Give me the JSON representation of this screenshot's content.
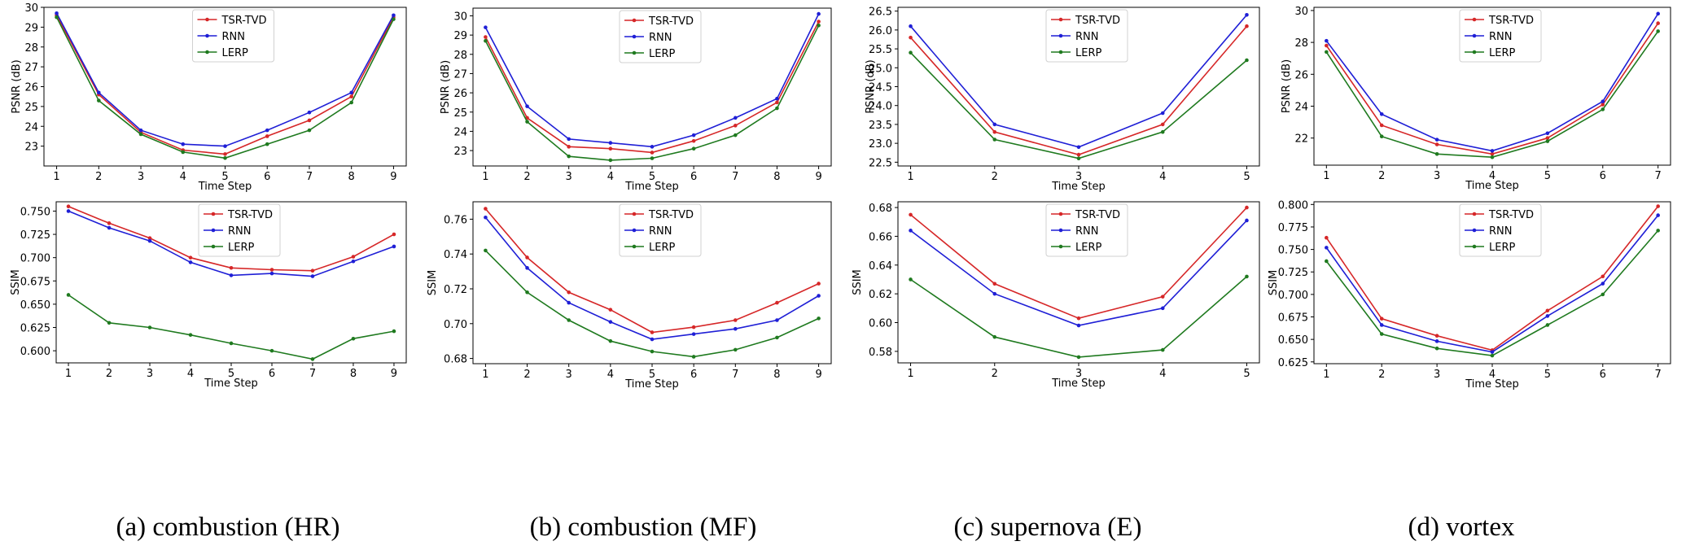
{
  "chart_data": [
    {
      "type": "line",
      "metric": "psnr",
      "panel": 0,
      "ylabel": "PSNR (dB)",
      "xlabel": "Time Step",
      "x": [
        1,
        2,
        3,
        4,
        5,
        6,
        7,
        8,
        9
      ],
      "ylim": [
        22.0,
        30.0
      ],
      "yticks": [
        23,
        24,
        25,
        26,
        27,
        28,
        29,
        30
      ],
      "ytick_labels": [
        "23",
        "24",
        "25",
        "26",
        "27",
        "28",
        "29",
        "30"
      ],
      "legend_position": "upper-center",
      "series": [
        {
          "name": "TSR-TVD",
          "color": "#d62728",
          "values": [
            29.6,
            25.6,
            23.7,
            22.8,
            22.6,
            23.5,
            24.3,
            25.5,
            29.5
          ]
        },
        {
          "name": "RNN",
          "color": "#1f1fd6",
          "values": [
            29.7,
            25.7,
            23.8,
            23.1,
            23.0,
            23.8,
            24.7,
            25.7,
            29.6
          ]
        },
        {
          "name": "LERP",
          "color": "#1f7a1f",
          "values": [
            29.5,
            25.3,
            23.6,
            22.7,
            22.4,
            23.1,
            23.8,
            25.2,
            29.4
          ]
        }
      ]
    },
    {
      "type": "line",
      "metric": "psnr",
      "panel": 1,
      "ylabel": "PSNR (dB)",
      "xlabel": "Time Step",
      "x": [
        1,
        2,
        3,
        4,
        5,
        6,
        7,
        8,
        9
      ],
      "ylim": [
        22.2,
        30.4
      ],
      "yticks": [
        23,
        24,
        25,
        26,
        27,
        28,
        29,
        30
      ],
      "ytick_labels": [
        "23",
        "24",
        "25",
        "26",
        "27",
        "28",
        "29",
        "30"
      ],
      "legend_position": "upper-center",
      "series": [
        {
          "name": "TSR-TVD",
          "color": "#d62728",
          "values": [
            28.9,
            24.7,
            23.2,
            23.1,
            22.9,
            23.5,
            24.3,
            25.5,
            29.7
          ]
        },
        {
          "name": "RNN",
          "color": "#1f1fd6",
          "values": [
            29.4,
            25.3,
            23.6,
            23.4,
            23.2,
            23.8,
            24.7,
            25.7,
            30.1
          ]
        },
        {
          "name": "LERP",
          "color": "#1f7a1f",
          "values": [
            28.7,
            24.5,
            22.7,
            22.5,
            22.6,
            23.1,
            23.8,
            25.2,
            29.5
          ]
        }
      ]
    },
    {
      "type": "line",
      "metric": "psnr",
      "panel": 2,
      "ylabel": "PSNR (dB)",
      "xlabel": "Time Step",
      "x": [
        1,
        2,
        3,
        4,
        5
      ],
      "ylim": [
        22.4,
        26.6
      ],
      "yticks": [
        22.5,
        23.0,
        23.5,
        24.0,
        24.5,
        25.0,
        25.5,
        26.0,
        26.5
      ],
      "ytick_labels": [
        "22.5",
        "23.0",
        "23.5",
        "24.0",
        "24.5",
        "25.0",
        "25.5",
        "26.0",
        "26.5"
      ],
      "legend_position": "upper-center",
      "series": [
        {
          "name": "TSR-TVD",
          "color": "#d62728",
          "values": [
            25.8,
            23.3,
            22.7,
            23.5,
            26.1
          ]
        },
        {
          "name": "RNN",
          "color": "#1f1fd6",
          "values": [
            26.1,
            23.5,
            22.9,
            23.8,
            26.4
          ]
        },
        {
          "name": "LERP",
          "color": "#1f7a1f",
          "values": [
            25.4,
            23.1,
            22.6,
            23.3,
            25.2
          ]
        }
      ]
    },
    {
      "type": "line",
      "metric": "psnr",
      "panel": 3,
      "ylabel": "PSNR (dB)",
      "xlabel": "Time Step",
      "x": [
        1,
        2,
        3,
        4,
        5,
        6,
        7
      ],
      "ylim": [
        20.3,
        30.2
      ],
      "yticks": [
        22,
        24,
        26,
        28,
        30
      ],
      "ytick_labels": [
        "22",
        "24",
        "26",
        "28",
        "30"
      ],
      "legend_position": "upper-center",
      "series": [
        {
          "name": "TSR-TVD",
          "color": "#d62728",
          "values": [
            27.8,
            22.8,
            21.6,
            21.0,
            22.0,
            24.1,
            29.2
          ]
        },
        {
          "name": "RNN",
          "color": "#1f1fd6",
          "values": [
            28.1,
            23.5,
            21.9,
            21.2,
            22.3,
            24.3,
            29.8
          ]
        },
        {
          "name": "LERP",
          "color": "#1f7a1f",
          "values": [
            27.4,
            22.1,
            21.0,
            20.8,
            21.8,
            23.8,
            28.7
          ]
        }
      ]
    },
    {
      "type": "line",
      "metric": "ssim",
      "panel": 0,
      "ylabel": "SSIM",
      "xlabel": "Time Step",
      "x": [
        1,
        2,
        3,
        4,
        5,
        6,
        7,
        8,
        9
      ],
      "ylim": [
        0.587,
        0.76
      ],
      "yticks": [
        0.6,
        0.625,
        0.65,
        0.675,
        0.7,
        0.725,
        0.75
      ],
      "ytick_labels": [
        "0.600",
        "0.625",
        "0.650",
        "0.675",
        "0.700",
        "0.725",
        "0.750"
      ],
      "legend_position": "upper-center",
      "series": [
        {
          "name": "TSR-TVD",
          "color": "#d62728",
          "values": [
            0.755,
            0.737,
            0.721,
            0.7,
            0.689,
            0.687,
            0.686,
            0.701,
            0.725
          ]
        },
        {
          "name": "RNN",
          "color": "#1f1fd6",
          "values": [
            0.75,
            0.732,
            0.718,
            0.695,
            0.681,
            0.683,
            0.68,
            0.696,
            0.712
          ]
        },
        {
          "name": "LERP",
          "color": "#1f7a1f",
          "values": [
            0.66,
            0.63,
            0.625,
            0.617,
            0.608,
            0.6,
            0.591,
            0.613,
            0.621
          ]
        }
      ]
    },
    {
      "type": "line",
      "metric": "ssim",
      "panel": 1,
      "ylabel": "SSIM",
      "xlabel": "Time Step",
      "x": [
        1,
        2,
        3,
        4,
        5,
        6,
        7,
        8,
        9
      ],
      "ylim": [
        0.677,
        0.77
      ],
      "yticks": [
        0.68,
        0.7,
        0.72,
        0.74,
        0.76
      ],
      "ytick_labels": [
        "0.68",
        "0.70",
        "0.72",
        "0.74",
        "0.76"
      ],
      "legend_position": "upper-center",
      "series": [
        {
          "name": "TSR-TVD",
          "color": "#d62728",
          "values": [
            0.766,
            0.738,
            0.718,
            0.708,
            0.695,
            0.698,
            0.702,
            0.712,
            0.723
          ]
        },
        {
          "name": "RNN",
          "color": "#1f1fd6",
          "values": [
            0.761,
            0.732,
            0.712,
            0.701,
            0.691,
            0.694,
            0.697,
            0.702,
            0.716
          ]
        },
        {
          "name": "LERP",
          "color": "#1f7a1f",
          "values": [
            0.742,
            0.718,
            0.702,
            0.69,
            0.684,
            0.681,
            0.685,
            0.692,
            0.703
          ]
        }
      ]
    },
    {
      "type": "line",
      "metric": "ssim",
      "panel": 2,
      "ylabel": "SSIM",
      "xlabel": "Time Step",
      "x": [
        1,
        2,
        3,
        4,
        5
      ],
      "ylim": [
        0.572,
        0.684
      ],
      "yticks": [
        0.58,
        0.6,
        0.62,
        0.64,
        0.66,
        0.68
      ],
      "ytick_labels": [
        "0.58",
        "0.60",
        "0.62",
        "0.64",
        "0.66",
        "0.68"
      ],
      "legend_position": "upper-center",
      "series": [
        {
          "name": "TSR-TVD",
          "color": "#d62728",
          "values": [
            0.675,
            0.627,
            0.603,
            0.618,
            0.68
          ]
        },
        {
          "name": "RNN",
          "color": "#1f1fd6",
          "values": [
            0.664,
            0.62,
            0.598,
            0.61,
            0.671
          ]
        },
        {
          "name": "LERP",
          "color": "#1f7a1f",
          "values": [
            0.63,
            0.59,
            0.576,
            0.581,
            0.632
          ]
        }
      ]
    },
    {
      "type": "line",
      "metric": "ssim",
      "panel": 3,
      "ylabel": "SSIM",
      "xlabel": "Time Step",
      "x": [
        1,
        2,
        3,
        4,
        5,
        6,
        7
      ],
      "ylim": [
        0.623,
        0.803
      ],
      "yticks": [
        0.625,
        0.65,
        0.675,
        0.7,
        0.725,
        0.75,
        0.775,
        0.8
      ],
      "ytick_labels": [
        "0.625",
        "0.650",
        "0.675",
        "0.700",
        "0.725",
        "0.750",
        "0.775",
        "0.800"
      ],
      "legend_position": "upper-center",
      "series": [
        {
          "name": "TSR-TVD",
          "color": "#d62728",
          "values": [
            0.763,
            0.673,
            0.654,
            0.638,
            0.682,
            0.72,
            0.798
          ]
        },
        {
          "name": "RNN",
          "color": "#1f1fd6",
          "values": [
            0.752,
            0.666,
            0.648,
            0.636,
            0.676,
            0.712,
            0.788
          ]
        },
        {
          "name": "LERP",
          "color": "#1f7a1f",
          "values": [
            0.737,
            0.656,
            0.64,
            0.632,
            0.666,
            0.7,
            0.771
          ]
        }
      ]
    }
  ],
  "captions": [
    "(a) combustion (HR)",
    "(b) combustion (MF)",
    "(c) supernova (E)",
    "(d) vortex"
  ]
}
